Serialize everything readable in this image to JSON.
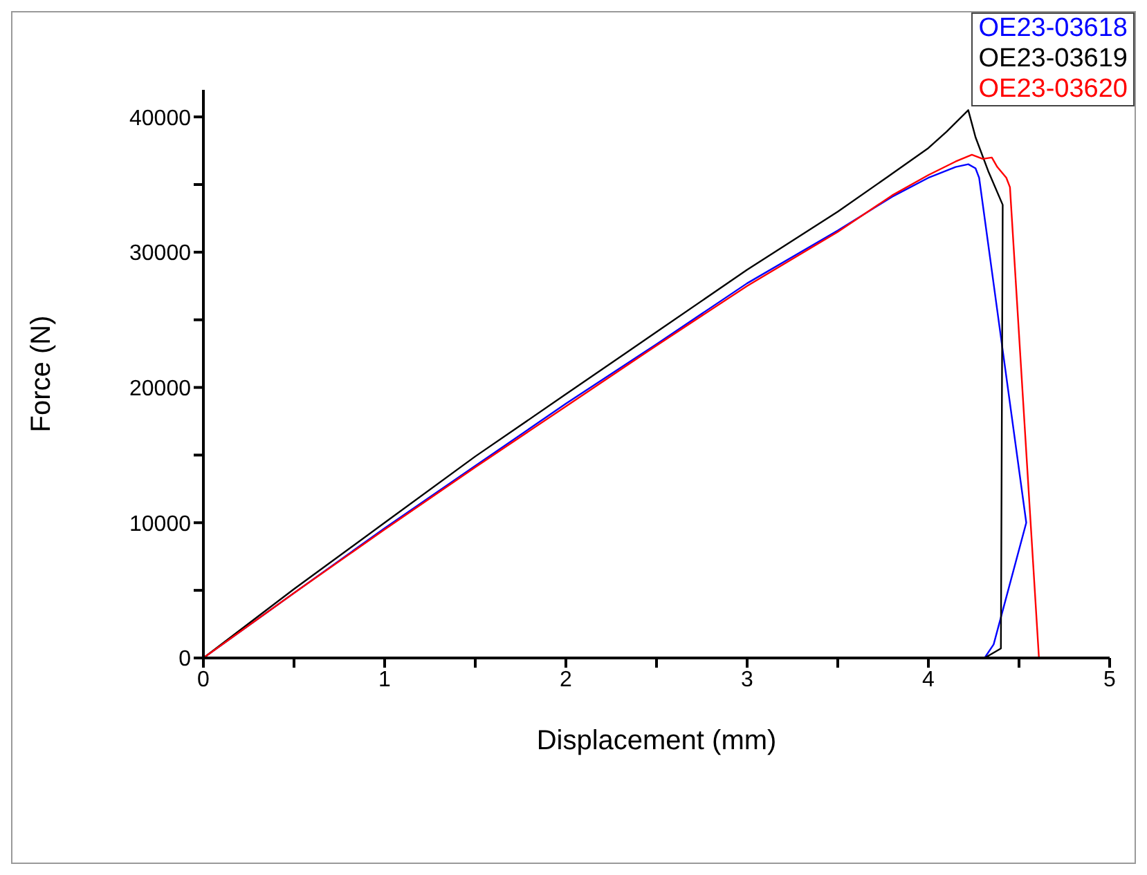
{
  "chart_data": {
    "type": "line",
    "xlabel": "Displacement (mm)",
    "ylabel": "Force (N)",
    "xlim": [
      0,
      5
    ],
    "ylim": [
      0,
      42000
    ],
    "xticks": [
      0,
      {
        "value": 0.5,
        "label": null
      },
      1,
      {
        "value": 1.5,
        "label": null
      },
      2,
      {
        "value": 2.5,
        "label": null
      },
      3,
      {
        "value": 3.5,
        "label": null
      },
      4,
      {
        "value": 4.5,
        "label": null
      },
      5
    ],
    "yticks": [
      0,
      {
        "value": 5000,
        "label": null
      },
      10000,
      {
        "value": 15000,
        "label": null
      },
      20000,
      {
        "value": 25000,
        "label": null
      },
      30000,
      {
        "value": 35000,
        "label": null
      },
      40000
    ],
    "grid": false,
    "legend": "top right",
    "line_style": "solid",
    "series": [
      {
        "name": "OE23-03618",
        "color": "#0000ff",
        "x": [
          0,
          0.5,
          1,
          1.5,
          2,
          2.5,
          3,
          3.5,
          3.8,
          4,
          4.15,
          4.22,
          4.26,
          4.28,
          4.54,
          4.36,
          4.31
        ],
        "values": [
          0,
          4800,
          9600,
          14200,
          18800,
          23200,
          27700,
          31600,
          34100,
          35500,
          36300,
          36500,
          36200,
          35500,
          10000,
          1000,
          0
        ]
      },
      {
        "name": "OE23-03619",
        "color": "#000000",
        "x": [
          0,
          0.5,
          1,
          1.5,
          2,
          2.5,
          3,
          3.5,
          3.8,
          4,
          4.1,
          4.22,
          4.24,
          4.26,
          4.33,
          4.41,
          4.4,
          4.31
        ],
        "values": [
          0,
          5100,
          10000,
          14900,
          19500,
          24100,
          28700,
          33000,
          35800,
          37700,
          38900,
          40500,
          39500,
          38500,
          36000,
          33500,
          700,
          0
        ]
      },
      {
        "name": "OE23-03620",
        "color": "#ff0000",
        "x": [
          0,
          0.5,
          1,
          1.5,
          2,
          2.5,
          3,
          3.5,
          3.8,
          4,
          4.15,
          4.24,
          4.3,
          4.35,
          4.38,
          4.43,
          4.45,
          4.61
        ],
        "values": [
          0,
          4800,
          9500,
          14100,
          18600,
          23100,
          27500,
          31500,
          34200,
          35700,
          36700,
          37200,
          36900,
          37000,
          36300,
          35500,
          34800,
          0
        ]
      }
    ]
  }
}
